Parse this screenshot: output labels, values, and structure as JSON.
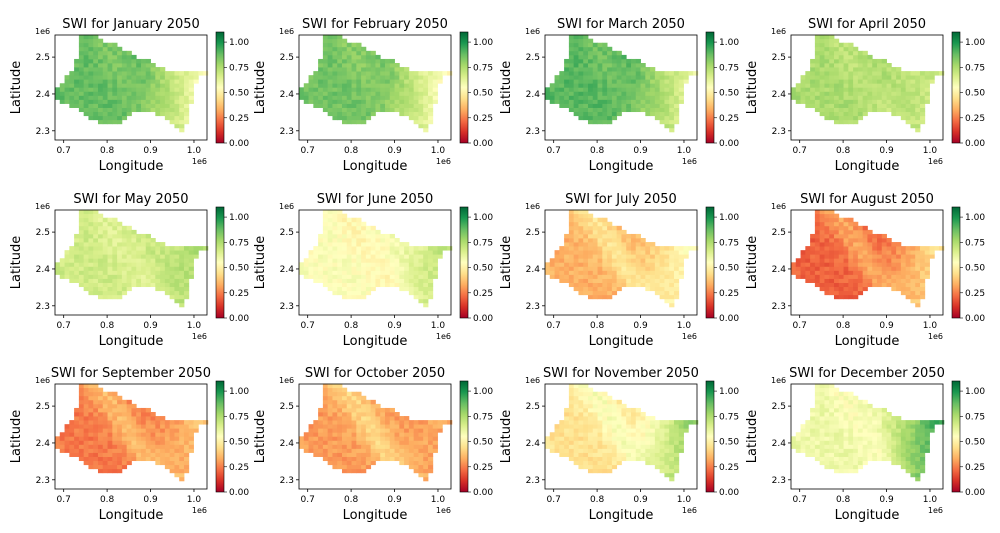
{
  "figure": {
    "type": "heatmap-grid",
    "rows": 3,
    "cols": 4
  },
  "colorbar": {
    "ticks": [
      "0.00",
      "0.25",
      "0.50",
      "0.75",
      "1.00"
    ],
    "range": [
      0,
      1.1
    ],
    "colormap": "RdYlGn",
    "stops": [
      "#a50026",
      "#d73027",
      "#f46d43",
      "#fdae61",
      "#fee08b",
      "#ffffbf",
      "#d9ef8b",
      "#a6d96a",
      "#66bd63",
      "#1a9850",
      "#006837"
    ]
  },
  "chart_data": [
    {
      "type": "heatmap",
      "title": "SWI for January 2050",
      "xlabel": "Longitude",
      "ylabel": "Latitude",
      "xticks": [
        "0.7",
        "0.8",
        "0.9",
        "1.0"
      ],
      "yticks": [
        "2.3",
        "2.4",
        "2.5"
      ],
      "x_offset": "1e6",
      "y_offset": "1e6",
      "xlim": [
        680000,
        1030000
      ],
      "ylim": [
        2275000,
        2560000
      ],
      "swi_core": 0.88,
      "swi_east": 0.55
    },
    {
      "type": "heatmap",
      "title": "SWI for February 2050",
      "xlabel": "Longitude",
      "ylabel": "Latitude",
      "xticks": [
        "0.7",
        "0.8",
        "0.9",
        "1.0"
      ],
      "yticks": [
        "2.3",
        "2.4",
        "2.5"
      ],
      "x_offset": "1e6",
      "y_offset": "1e6",
      "xlim": [
        680000,
        1030000
      ],
      "ylim": [
        2275000,
        2560000
      ],
      "swi_core": 0.86,
      "swi_east": 0.52
    },
    {
      "type": "heatmap",
      "title": "SWI for March 2050",
      "xlabel": "Longitude",
      "ylabel": "Latitude",
      "xticks": [
        "0.7",
        "0.8",
        "0.9",
        "1.0"
      ],
      "yticks": [
        "2.3",
        "2.4",
        "2.5"
      ],
      "x_offset": "1e6",
      "y_offset": "1e6",
      "xlim": [
        680000,
        1030000
      ],
      "ylim": [
        2275000,
        2560000
      ],
      "swi_core": 0.9,
      "swi_east": 0.6
    },
    {
      "type": "heatmap",
      "title": "SWI for April 2050",
      "xlabel": "Longitude",
      "ylabel": "Latitude",
      "xticks": [
        "0.7",
        "0.8",
        "0.9",
        "1.0"
      ],
      "yticks": [
        "2.3",
        "2.4",
        "2.5"
      ],
      "x_offset": "1e6",
      "y_offset": "1e6",
      "xlim": [
        680000,
        1030000
      ],
      "ylim": [
        2275000,
        2560000
      ],
      "swi_core": 0.76,
      "swi_east": 0.68
    },
    {
      "type": "heatmap",
      "title": "SWI for May 2050",
      "xlabel": "Longitude",
      "ylabel": "Latitude",
      "xticks": [
        "0.7",
        "0.8",
        "0.9",
        "1.0"
      ],
      "yticks": [
        "2.3",
        "2.4",
        "2.5"
      ],
      "x_offset": "1e6",
      "y_offset": "1e6",
      "xlim": [
        680000,
        1030000
      ],
      "ylim": [
        2275000,
        2560000
      ],
      "swi_core": 0.68,
      "swi_east": 0.75
    },
    {
      "type": "heatmap",
      "title": "SWI for June 2050",
      "xlabel": "Longitude",
      "ylabel": "Latitude",
      "xticks": [
        "0.7",
        "0.8",
        "0.9",
        "1.0"
      ],
      "yticks": [
        "2.3",
        "2.4",
        "2.5"
      ],
      "x_offset": "1e6",
      "y_offset": "1e6",
      "xlim": [
        680000,
        1030000
      ],
      "ylim": [
        2275000,
        2560000
      ],
      "swi_core": 0.56,
      "swi_east": 0.72
    },
    {
      "type": "heatmap",
      "title": "SWI for July 2050",
      "xlabel": "Longitude",
      "ylabel": "Latitude",
      "xticks": [
        "0.7",
        "0.8",
        "0.9",
        "1.0"
      ],
      "yticks": [
        "2.3",
        "2.4",
        "2.5"
      ],
      "x_offset": "1e6",
      "y_offset": "1e6",
      "xlim": [
        680000,
        1030000
      ],
      "ylim": [
        2275000,
        2560000
      ],
      "swi_core": 0.34,
      "swi_east": 0.55
    },
    {
      "type": "heatmap",
      "title": "SWI for August 2050",
      "xlabel": "Longitude",
      "ylabel": "Latitude",
      "xticks": [
        "0.7",
        "0.8",
        "0.9",
        "1.0"
      ],
      "yticks": [
        "2.3",
        "2.4",
        "2.5"
      ],
      "x_offset": "1e6",
      "y_offset": "1e6",
      "xlim": [
        680000,
        1030000
      ],
      "ylim": [
        2275000,
        2560000
      ],
      "swi_core": 0.2,
      "swi_east": 0.45
    },
    {
      "type": "heatmap",
      "title": "SWI for September 2050",
      "xlabel": "Longitude",
      "ylabel": "Latitude",
      "xticks": [
        "0.7",
        "0.8",
        "0.9",
        "1.0"
      ],
      "yticks": [
        "2.3",
        "2.4",
        "2.5"
      ],
      "x_offset": "1e6",
      "y_offset": "1e6",
      "xlim": [
        680000,
        1030000
      ],
      "ylim": [
        2275000,
        2560000
      ],
      "swi_core": 0.24,
      "swi_east": 0.38
    },
    {
      "type": "heatmap",
      "title": "SWI for October 2050",
      "xlabel": "Longitude",
      "ylabel": "Latitude",
      "xticks": [
        "0.7",
        "0.8",
        "0.9",
        "1.0"
      ],
      "yticks": [
        "2.3",
        "2.4",
        "2.5"
      ],
      "x_offset": "1e6",
      "y_offset": "1e6",
      "xlim": [
        680000,
        1030000
      ],
      "ylim": [
        2275000,
        2560000
      ],
      "swi_core": 0.3,
      "swi_east": 0.32
    },
    {
      "type": "heatmap",
      "title": "SWI for November 2050",
      "xlabel": "Longitude",
      "ylabel": "Latitude",
      "xticks": [
        "0.7",
        "0.8",
        "0.9",
        "1.0"
      ],
      "yticks": [
        "2.3",
        "2.4",
        "2.5"
      ],
      "x_offset": "1e6",
      "y_offset": "1e6",
      "xlim": [
        680000,
        1030000
      ],
      "ylim": [
        2275000,
        2560000
      ],
      "swi_core": 0.45,
      "swi_east": 0.82
    },
    {
      "type": "heatmap",
      "title": "SWI for December 2050",
      "xlabel": "Longitude",
      "ylabel": "Latitude",
      "xticks": [
        "0.7",
        "0.8",
        "0.9",
        "1.0"
      ],
      "yticks": [
        "2.3",
        "2.4",
        "2.5"
      ],
      "x_offset": "1e6",
      "y_offset": "1e6",
      "xlim": [
        680000,
        1030000
      ],
      "ylim": [
        2275000,
        2560000
      ],
      "swi_core": 0.6,
      "swi_east": 0.95
    }
  ]
}
